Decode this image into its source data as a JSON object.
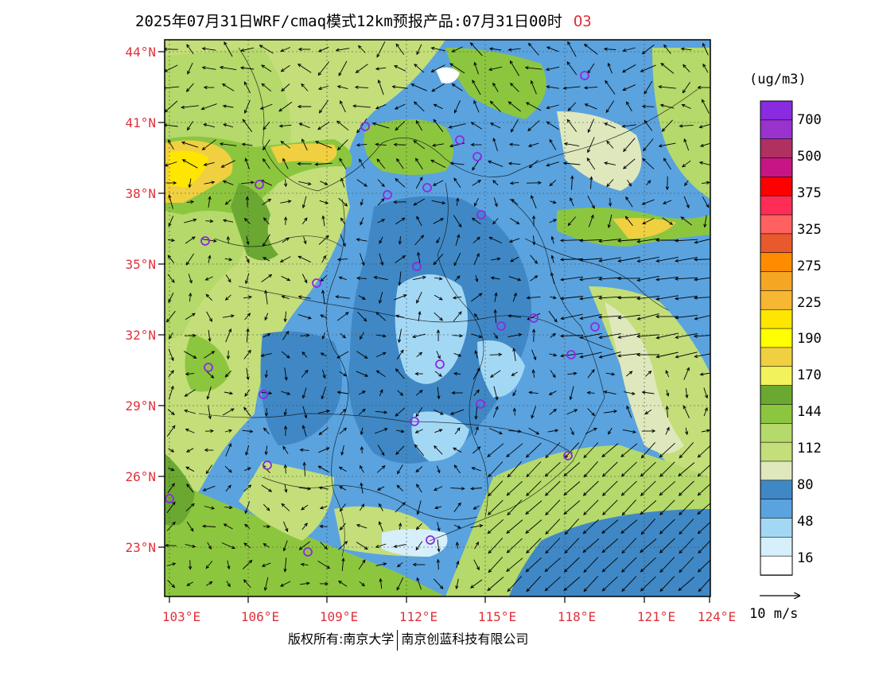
{
  "header": {
    "title": "2025年07月31日WRF/cmaq模式12km预报产品:07月31日00时",
    "species": "O3"
  },
  "axes": {
    "lat_labels": [
      "44°N",
      "41°N",
      "38°N",
      "35°N",
      "32°N",
      "29°N",
      "26°N",
      "23°N"
    ],
    "lon_labels": [
      "103°E",
      "106°E",
      "109°E",
      "112°E",
      "115°E",
      "118°E",
      "121°E",
      "124°E"
    ]
  },
  "legend": {
    "unit": "(ug/m3)",
    "levels": [
      "700",
      "500",
      "375",
      "325",
      "275",
      "225",
      "190",
      "170",
      "144",
      "112",
      "80",
      "48",
      "16"
    ],
    "colors": [
      "#8a2be2",
      "#9a32cd",
      "#b03060",
      "#c71585",
      "#ff0000",
      "#ff2d55",
      "#ff6060",
      "#e8592e",
      "#ff8c00",
      "#f5a623",
      "#f7b733",
      "#ffe600",
      "#ffff00",
      "#f0d040",
      "#f2f25c",
      "#6aa832",
      "#8cc63f",
      "#b5d96a",
      "#c4de7a",
      "#dfe8bd",
      "#3f88c5",
      "#5aa3df",
      "#a3d8f5",
      "#d6effb",
      "#ffffff"
    ],
    "wind_reference": "10 m/s"
  },
  "footer": {
    "copyright_left": "版权所有:南京大学",
    "copyright_right": "南京创蓝科技有限公司"
  }
}
